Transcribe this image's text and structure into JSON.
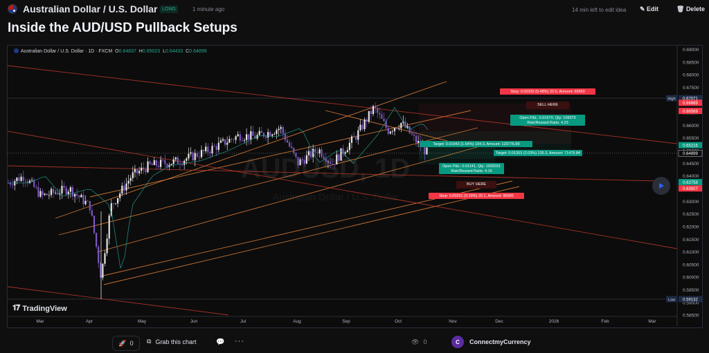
{
  "header": {
    "symbol_name": "Australian Dollar / U.S. Dollar",
    "badge": "LONG",
    "posted": "1 minute ago",
    "edit_timer": "14 min left to edit idea",
    "edit_label": "Edit",
    "delete_label": "Delete"
  },
  "idea_title": "Inside the AUD/USD Pullback Setups",
  "legend": {
    "symbol": "Australian Dollar / U.S. Dollar · 1D · FXCM",
    "o": "0.64837",
    "h": "0.65023",
    "l": "0.64433",
    "c": "0.64899"
  },
  "colors": {
    "background": "#0c0c0c",
    "up": "#e6e6e6",
    "down": "#7e57c2",
    "channel_orange": "#e8853a",
    "channel_red": "#c0392b",
    "stop_red": "#f23645",
    "target_teal": "#089981",
    "ma_teal": "#26a69a"
  },
  "chart_data": {
    "type": "candlestick",
    "watermark_symbol": "AUDUSD, 1D",
    "watermark_name": "Australian Dollar / U.S. Dollar",
    "ylim": [
      0.5845,
      0.6915
    ],
    "y_ticks": [
      "0.69000",
      "0.68500",
      "0.68000",
      "0.67500",
      "0.67000",
      "0.66500",
      "0.66000",
      "0.65500",
      "0.65000",
      "0.64500",
      "0.64000",
      "0.63500",
      "0.63000",
      "0.62500",
      "0.62000",
      "0.61500",
      "0.61000",
      "0.60500",
      "0.60000",
      "0.59500",
      "0.59000",
      "0.58500"
    ],
    "x_labels": [
      "Mar",
      "Apr",
      "May",
      "Jun",
      "Jul",
      "Aug",
      "Sep",
      "Oct",
      "Nov",
      "Dec",
      "2026",
      "Feb",
      "Mar"
    ],
    "price_labels": [
      {
        "label": "High",
        "value": "0.67071",
        "price": 0.67071,
        "kind": "high"
      },
      {
        "label": "",
        "value": "0.66889",
        "price": 0.66889,
        "kind": "red"
      },
      {
        "label": "",
        "value": "0.66569",
        "price": 0.66569,
        "kind": "red"
      },
      {
        "label": "",
        "value": "0.65216",
        "price": 0.65216,
        "kind": "teal"
      },
      {
        "label": "",
        "value": "0.64899",
        "price": 0.64899,
        "kind": "last"
      },
      {
        "label": "",
        "value": "0.63758",
        "price": 0.63758,
        "kind": "teal"
      },
      {
        "label": "",
        "value": "0.63507",
        "price": 0.63507,
        "kind": "red"
      },
      {
        "label": "Low",
        "value": "0.59132",
        "price": 0.59132,
        "kind": "low"
      }
    ],
    "short_position": {
      "stop_text": "Stop: 0.00320 (0.48%) 32.0, Amount: 69650",
      "entry_text": "SELL HERE",
      "pnl_text": "Open P&L: 0.01670, Qty: 109375",
      "rr_text": "Risk/Reward Ratio: 4.23",
      "target_text": "Target: 0.01353 (2.03%) 135.3, Amount: 71479.84"
    },
    "long_position": {
      "target_text": "Target: 0.01043 (1.64%) 104.3, Amount: 120776.89",
      "pnl_text": "Open P&L: 0.01141, Qty: 1992031",
      "rr_text": "Risk/Reward Ratio: 4.16",
      "entry_text": "BUY HERE",
      "stop_text": "Stop: 0.00251 (0.39%) 25.1, Amount: 95000"
    }
  },
  "tv_logo": "TradingView",
  "footer": {
    "boost_count": "0",
    "grab_label": "Grab this chart",
    "views_count": "0",
    "author": "ConnectmyCurrency",
    "author_initial": "C"
  }
}
